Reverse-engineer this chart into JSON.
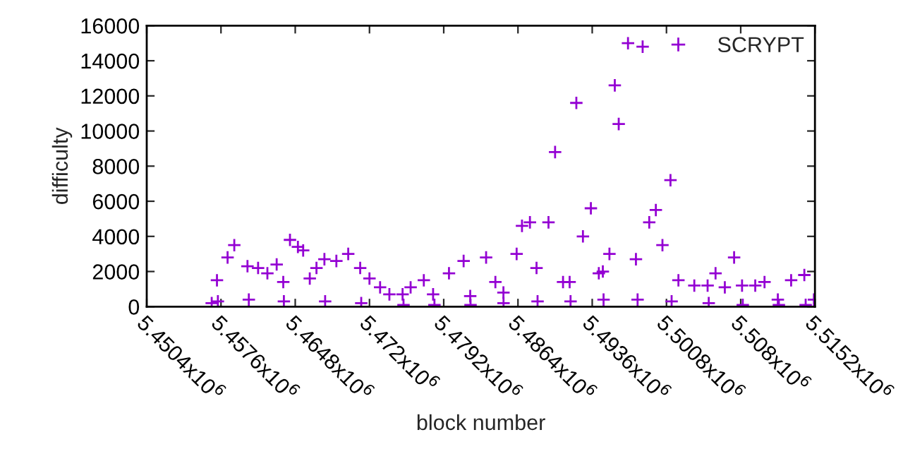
{
  "chart_data": {
    "type": "scatter",
    "xlabel": "block number",
    "ylabel": "difficulty",
    "legend": "top right",
    "marker": "cross",
    "grid": false,
    "xlim": [
      5450400,
      5515200
    ],
    "ylim": [
      0,
      16000
    ],
    "xticks": [
      {
        "value": 5450400,
        "label": "5.4504x10$^{6}$"
      },
      {
        "value": 5457600,
        "label": "5.4576x10$^{6}$"
      },
      {
        "value": 5464800,
        "label": "5.4648x10$^{6}$"
      },
      {
        "value": 5472000,
        "label": "5.472x10$^{6}$"
      },
      {
        "value": 5479200,
        "label": "5.4792x10$^{6}$"
      },
      {
        "value": 5486400,
        "label": "5.4864x10$^{6}$"
      },
      {
        "value": 5493600,
        "label": "5.4936x10$^{6}$"
      },
      {
        "value": 5500800,
        "label": "5.5008x10$^{6}$"
      },
      {
        "value": 5508000,
        "label": "5.508x10$^{6}$"
      },
      {
        "value": 5515200,
        "label": "5.5152x10$^{6}$"
      }
    ],
    "yticks": [
      0,
      2000,
      4000,
      6000,
      8000,
      10000,
      12000,
      14000,
      16000
    ],
    "series": [
      {
        "name": "SCRYPT",
        "color": "#9400d3",
        "x": [
          5456700,
          5457210,
          5458240,
          5458890,
          5460170,
          5461200,
          5462100,
          5463000,
          5463640,
          5464290,
          5465060,
          5465570,
          5466210,
          5466860,
          5467630,
          5468790,
          5469940,
          5471100,
          5472000,
          5473030,
          5473930,
          5475210,
          5475990,
          5477270,
          5478170,
          5479710,
          5481130,
          5481770,
          5483310,
          5484210,
          5484990,
          5486270,
          5486790,
          5487560,
          5488200,
          5489360,
          5490000,
          5490770,
          5491410,
          5492060,
          5492700,
          5493470,
          5494240,
          5494630,
          5495270,
          5495790,
          5496170,
          5497070,
          5497840,
          5498490,
          5499130,
          5499770,
          5500410,
          5501190,
          5501960,
          5503500,
          5504790,
          5505560,
          5506460,
          5507360,
          5508130,
          5509410,
          5510310,
          5511600,
          5512890,
          5514170,
          5515100,
          5457300,
          5460300,
          5463700,
          5467700,
          5471200,
          5475300,
          5478300,
          5481800,
          5485000,
          5488300,
          5491500,
          5494700,
          5498000,
          5501300,
          5504900,
          5508200,
          5511700,
          5514300
        ],
        "values": [
          200,
          1500,
          2800,
          3500,
          2300,
          2200,
          1900,
          2400,
          1400,
          3800,
          3400,
          3200,
          1600,
          2200,
          2700,
          2600,
          3000,
          2200,
          1600,
          1100,
          700,
          700,
          1100,
          1500,
          700,
          1900,
          2600,
          600,
          2800,
          1400,
          800,
          3000,
          4600,
          4800,
          2200,
          4800,
          8800,
          1400,
          1400,
          11600,
          4000,
          5600,
          1900,
          2000,
          3000,
          12600,
          10400,
          15000,
          2700,
          14800,
          4800,
          5500,
          3500,
          7200,
          1500,
          1200,
          1200,
          1900,
          1100,
          2800,
          1200,
          1200,
          1400,
          400,
          1500,
          1800,
          400,
          300,
          400,
          300,
          300,
          200,
          100,
          100,
          100,
          200,
          300,
          300,
          400,
          400,
          300,
          200,
          100,
          100,
          100
        ]
      }
    ]
  }
}
